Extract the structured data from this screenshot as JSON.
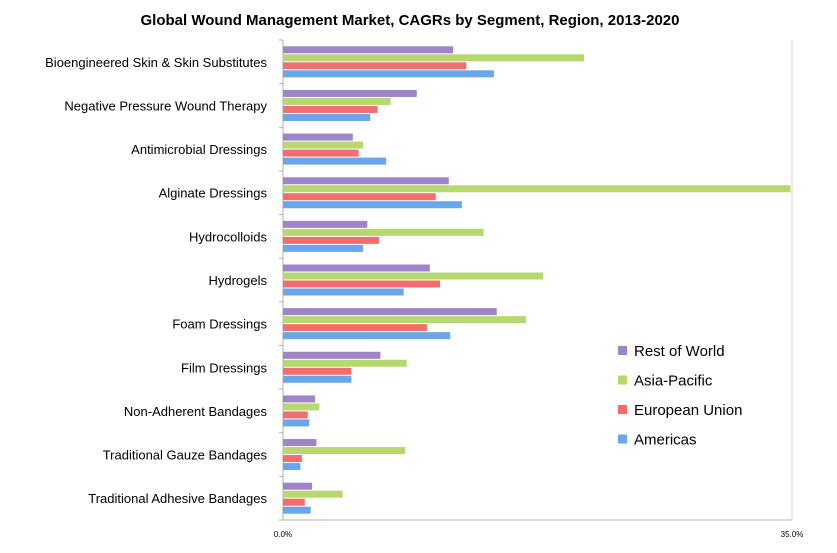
{
  "chart_data": {
    "type": "bar",
    "orientation": "horizontal",
    "title": "Global Wound Management Market, CAGRs by Segment, Region, 2013-2020",
    "xlabel": "",
    "ylabel": "",
    "xlim": [
      0,
      35
    ],
    "x_tick_labels": [
      "0.0%",
      "35.0%"
    ],
    "grid": false,
    "legend_position": "right",
    "categories": [
      "Bioengineered Skin & Skin Substitutes",
      "Negative Pressure Wound Therapy",
      "Antimicrobial Dressings",
      "Alginate Dressings",
      "Hydrocolloids",
      "Hydrogels",
      "Foam Dressings",
      "Film Dressings",
      "Non-Adherent Bandages",
      "Traditional Gauze Bandages",
      "Traditional Adhesive Bandages"
    ],
    "series": [
      {
        "name": "Rest of World",
        "color": "#a084c8",
        "values": [
          11.7,
          9.2,
          4.8,
          11.4,
          5.8,
          10.1,
          14.7,
          6.7,
          2.2,
          2.3,
          2.0
        ]
      },
      {
        "name": "Asia-Pacific",
        "color": "#b6d86e",
        "values": [
          20.7,
          7.4,
          5.5,
          34.9,
          13.8,
          17.9,
          16.7,
          8.5,
          2.5,
          8.4,
          4.1
        ]
      },
      {
        "name": "European Union",
        "color": "#f26e6e",
        "values": [
          12.6,
          6.5,
          5.2,
          10.5,
          6.6,
          10.8,
          9.9,
          4.7,
          1.7,
          1.3,
          1.5
        ]
      },
      {
        "name": "Americas",
        "color": "#6aa6ea",
        "values": [
          14.5,
          6.0,
          7.1,
          12.3,
          5.5,
          8.3,
          11.5,
          4.7,
          1.8,
          1.2,
          1.9
        ]
      }
    ]
  }
}
